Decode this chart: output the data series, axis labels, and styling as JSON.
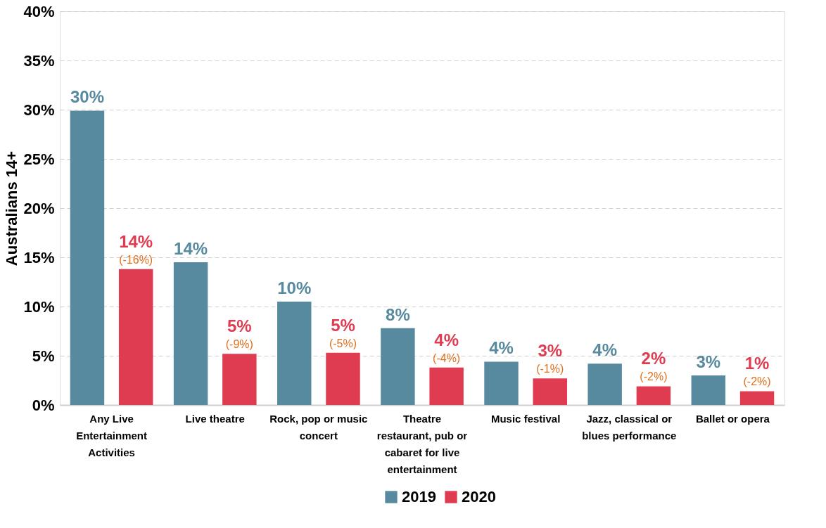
{
  "chart_data": {
    "type": "bar",
    "ylabel": "Australians 14+",
    "categories": [
      "Any Live Entertainment Activities",
      "Live theatre",
      "Rock, pop or music concert",
      "Theatre restaurant, pub or cabaret for live entertainment",
      "Music festival",
      "Jazz, classical or blues performance",
      "Ballet or opera"
    ],
    "series": [
      {
        "name": "2019",
        "color": "#588a9f",
        "values": [
          29.9,
          14.5,
          10.5,
          7.8,
          4.4,
          4.2,
          3.0
        ],
        "value_labels": [
          "30%",
          "14%",
          "10%",
          "8%",
          "4%",
          "4%",
          "3%"
        ]
      },
      {
        "name": "2020",
        "color": "#e03c51",
        "values": [
          13.8,
          5.2,
          5.3,
          3.8,
          2.7,
          1.9,
          1.4
        ],
        "value_labels": [
          "14%",
          "5%",
          "5%",
          "4%",
          "3%",
          "2%",
          "1%"
        ]
      }
    ],
    "annotations": [
      "(-16%)",
      "(-9%)",
      "(-5%)",
      "(-4%)",
      "(-1%)",
      "(-2%)",
      "(-2%)"
    ],
    "ylim": [
      0,
      40
    ],
    "yticks": [
      {
        "value": 0,
        "label": "0%"
      },
      {
        "value": 5,
        "label": "5%"
      },
      {
        "value": 10,
        "label": "10%"
      },
      {
        "value": 15,
        "label": "15%"
      },
      {
        "value": 20,
        "label": "20%"
      },
      {
        "value": 25,
        "label": "25%"
      },
      {
        "value": 30,
        "label": "30%"
      },
      {
        "value": 35,
        "label": "35%"
      },
      {
        "value": 40,
        "label": "40%"
      }
    ],
    "grid": "y",
    "legend": "bottom"
  }
}
